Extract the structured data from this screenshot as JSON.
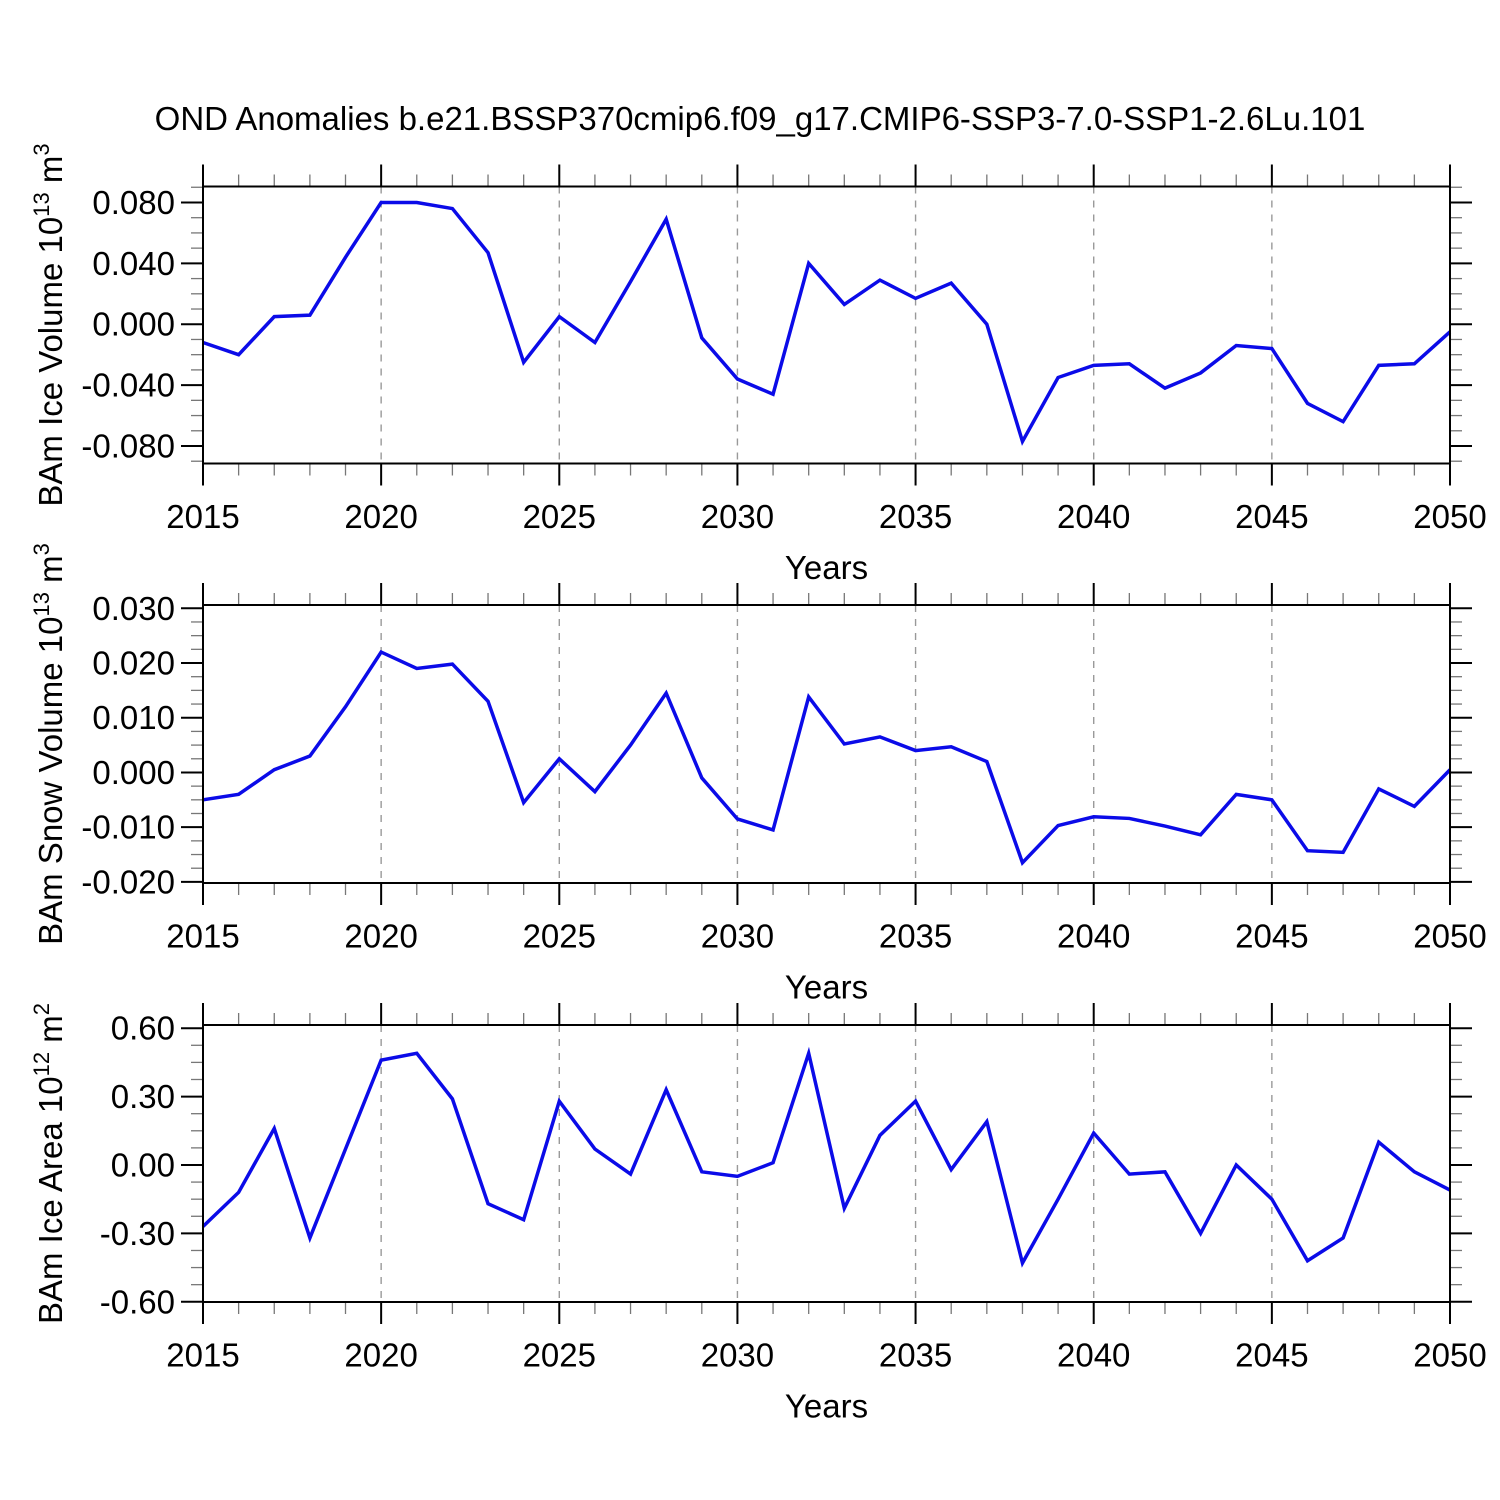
{
  "figure": {
    "title": "OND Anomalies b.e21.BSSP370cmip6.f09_g17.CMIP6-SSP3-7.0-SSP1-2.6Lu.101",
    "background_color": "#ffffff",
    "line_color": "#0b0be8",
    "gridline_color": "#999999",
    "axis_color": "#000000",
    "minor_tick_color": "#777777"
  },
  "chart_data": [
    {
      "type": "line",
      "key": "ice-volume",
      "ylabel_text": "BAm Ice Volume 10^13 m^3",
      "ylabel_runs": [
        {
          "t": "BAm Ice Volume 10"
        },
        {
          "t": "13",
          "sup": true
        },
        {
          "t": " m"
        },
        {
          "t": "3",
          "sup": true
        }
      ],
      "xlabel": "Years",
      "xlim": [
        2015,
        2050
      ],
      "ylim": [
        -0.0915,
        0.0905
      ],
      "xticks": [
        2015,
        2020,
        2025,
        2030,
        2035,
        2040,
        2045,
        2050
      ],
      "x_minor_step": 1,
      "x_gridlines": [
        2020,
        2025,
        2030,
        2035,
        2040,
        2045
      ],
      "yticks": [
        {
          "v": 0.08,
          "label": "0.080"
        },
        {
          "v": 0.04,
          "label": "0.040"
        },
        {
          "v": 0.0,
          "label": "0.000"
        },
        {
          "v": -0.04,
          "label": "-0.040"
        },
        {
          "v": -0.08,
          "label": "-0.080"
        }
      ],
      "y_minor_step": 0.01,
      "x": [
        2015,
        2016,
        2017,
        2018,
        2019,
        2020,
        2021,
        2022,
        2023,
        2024,
        2025,
        2026,
        2027,
        2028,
        2029,
        2030,
        2031,
        2032,
        2033,
        2034,
        2035,
        2036,
        2037,
        2038,
        2039,
        2040,
        2041,
        2042,
        2043,
        2044,
        2045,
        2046,
        2047,
        2048,
        2049,
        2050
      ],
      "values": [
        -0.012,
        -0.02,
        0.005,
        0.006,
        0.044,
        0.08,
        0.08,
        0.076,
        0.047,
        -0.025,
        0.005,
        -0.012,
        0.028,
        0.069,
        -0.009,
        -0.036,
        -0.046,
        0.04,
        0.013,
        0.029,
        0.017,
        0.027,
        0.0,
        -0.077,
        -0.035,
        -0.027,
        -0.026,
        -0.042,
        -0.032,
        -0.014,
        -0.016,
        -0.052,
        -0.064,
        -0.027,
        -0.026,
        -0.005
      ]
    },
    {
      "type": "line",
      "key": "snow-volume",
      "ylabel_text": "BAm Snow Volume 10^13 m^3",
      "ylabel_runs": [
        {
          "t": "BAm Snow Volume 10"
        },
        {
          "t": "13",
          "sup": true
        },
        {
          "t": " m"
        },
        {
          "t": "3",
          "sup": true
        }
      ],
      "xlabel": "Years",
      "xlim": [
        2015,
        2050
      ],
      "ylim": [
        -0.0202,
        0.0306
      ],
      "xticks": [
        2015,
        2020,
        2025,
        2030,
        2035,
        2040,
        2045,
        2050
      ],
      "x_minor_step": 1,
      "x_gridlines": [
        2020,
        2025,
        2030,
        2035,
        2040,
        2045
      ],
      "yticks": [
        {
          "v": 0.03,
          "label": "0.030"
        },
        {
          "v": 0.02,
          "label": "0.020"
        },
        {
          "v": 0.01,
          "label": "0.010"
        },
        {
          "v": 0.0,
          "label": "0.000"
        },
        {
          "v": -0.01,
          "label": "-0.010"
        },
        {
          "v": -0.02,
          "label": "-0.020"
        }
      ],
      "y_minor_step": 0.0025,
      "x": [
        2015,
        2016,
        2017,
        2018,
        2019,
        2020,
        2021,
        2022,
        2023,
        2024,
        2025,
        2026,
        2027,
        2028,
        2029,
        2030,
        2031,
        2032,
        2033,
        2034,
        2035,
        2036,
        2037,
        2038,
        2039,
        2040,
        2041,
        2042,
        2043,
        2044,
        2045,
        2046,
        2047,
        2048,
        2049,
        2050
      ],
      "values": [
        -0.005,
        -0.004,
        0.0005,
        0.003,
        0.012,
        0.022,
        0.019,
        0.0198,
        0.013,
        -0.0055,
        0.0025,
        -0.0035,
        0.005,
        0.0145,
        -0.001,
        -0.0085,
        -0.0105,
        0.0138,
        0.0052,
        0.0065,
        0.004,
        0.0047,
        0.002,
        -0.0165,
        -0.0097,
        -0.0081,
        -0.0084,
        -0.0098,
        -0.0114,
        -0.004,
        -0.005,
        -0.0143,
        -0.0146,
        -0.003,
        -0.0062,
        0.0005
      ]
    },
    {
      "type": "line",
      "key": "ice-area",
      "ylabel_text": "BAm Ice Area 10^12 m^2",
      "ylabel_runs": [
        {
          "t": "BAm Ice Area 10"
        },
        {
          "t": "12",
          "sup": true
        },
        {
          "t": " m"
        },
        {
          "t": "2",
          "sup": true
        }
      ],
      "xlabel": "Years",
      "xlim": [
        2015,
        2050
      ],
      "ylim": [
        -0.601,
        0.614
      ],
      "xticks": [
        2015,
        2020,
        2025,
        2030,
        2035,
        2040,
        2045,
        2050
      ],
      "x_minor_step": 1,
      "x_gridlines": [
        2020,
        2025,
        2030,
        2035,
        2040,
        2045
      ],
      "yticks": [
        {
          "v": 0.6,
          "label": "0.60"
        },
        {
          "v": 0.3,
          "label": "0.30"
        },
        {
          "v": 0.0,
          "label": "0.00"
        },
        {
          "v": -0.3,
          "label": "-0.30"
        },
        {
          "v": -0.6,
          "label": "-0.60"
        }
      ],
      "y_minor_step": 0.075,
      "x": [
        2015,
        2016,
        2017,
        2018,
        2019,
        2020,
        2021,
        2022,
        2023,
        2024,
        2025,
        2026,
        2027,
        2028,
        2029,
        2030,
        2031,
        2032,
        2033,
        2034,
        2035,
        2036,
        2037,
        2038,
        2039,
        2040,
        2041,
        2042,
        2043,
        2044,
        2045,
        2046,
        2047,
        2048,
        2049,
        2050
      ],
      "values": [
        -0.27,
        -0.12,
        0.16,
        -0.32,
        0.07,
        0.46,
        0.49,
        0.29,
        -0.17,
        -0.24,
        0.28,
        0.07,
        -0.04,
        0.33,
        -0.03,
        -0.05,
        0.01,
        0.49,
        -0.19,
        0.13,
        0.28,
        -0.02,
        0.19,
        -0.43,
        -0.15,
        0.14,
        -0.04,
        -0.03,
        -0.3,
        0.0,
        -0.15,
        -0.42,
        -0.32,
        0.1,
        -0.03,
        -0.11
      ]
    }
  ]
}
